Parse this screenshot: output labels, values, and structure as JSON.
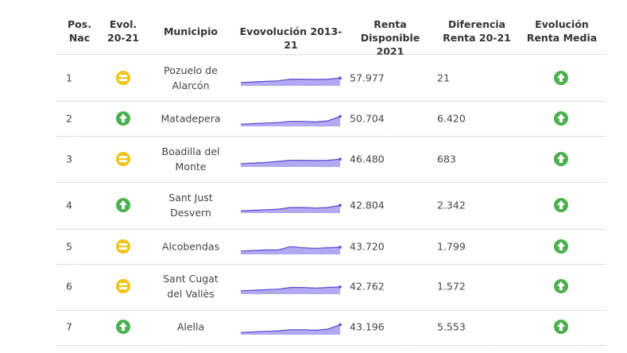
{
  "headers": {
    "pos": "Pos. Nac",
    "evol": "Evol. 20-21",
    "municipio": "Municipio",
    "evolucion": "Evovolución 2013-21",
    "renta": "Renta Disponible 2021",
    "diferencia": "Diferencia Renta 20-21",
    "evol_media": "Evolución Renta Media"
  },
  "colors": {
    "up": "#4cb050",
    "equal": "#f0c419",
    "spark_fill": "#b3a9f2",
    "spark_line": "#5a4bd1"
  },
  "rows": [
    {
      "pos": "1",
      "evol": "equal-icon",
      "municipio": "Pozuelo de Alarcón",
      "renta": "57.977",
      "diferencia": "21",
      "evol_media": "up-arrow-icon"
    },
    {
      "pos": "2",
      "evol": "up-arrow-icon",
      "municipio": "Matadepera",
      "renta": "50.704",
      "diferencia": "6.420",
      "evol_media": "up-arrow-icon"
    },
    {
      "pos": "3",
      "evol": "equal-icon",
      "municipio": "Boadilla del Monte",
      "renta": "46.480",
      "diferencia": "683",
      "evol_media": "up-arrow-icon"
    },
    {
      "pos": "4",
      "evol": "up-arrow-icon",
      "municipio": "Sant Just Desvern",
      "renta": "42.804",
      "diferencia": "2.342",
      "evol_media": "up-arrow-icon"
    },
    {
      "pos": "5",
      "evol": "equal-icon",
      "municipio": "Alcobendas",
      "renta": "43.720",
      "diferencia": "1.799",
      "evol_media": "up-arrow-icon"
    },
    {
      "pos": "6",
      "evol": "equal-icon",
      "municipio": "Sant Cugat del Vallès",
      "renta": "42.762",
      "diferencia": "1.572",
      "evol_media": "up-arrow-icon"
    },
    {
      "pos": "7",
      "evol": "up-arrow-icon",
      "municipio": "Alella",
      "renta": "43.196",
      "diferencia": "5.553",
      "evol_media": "up-arrow-icon"
    }
  ]
}
